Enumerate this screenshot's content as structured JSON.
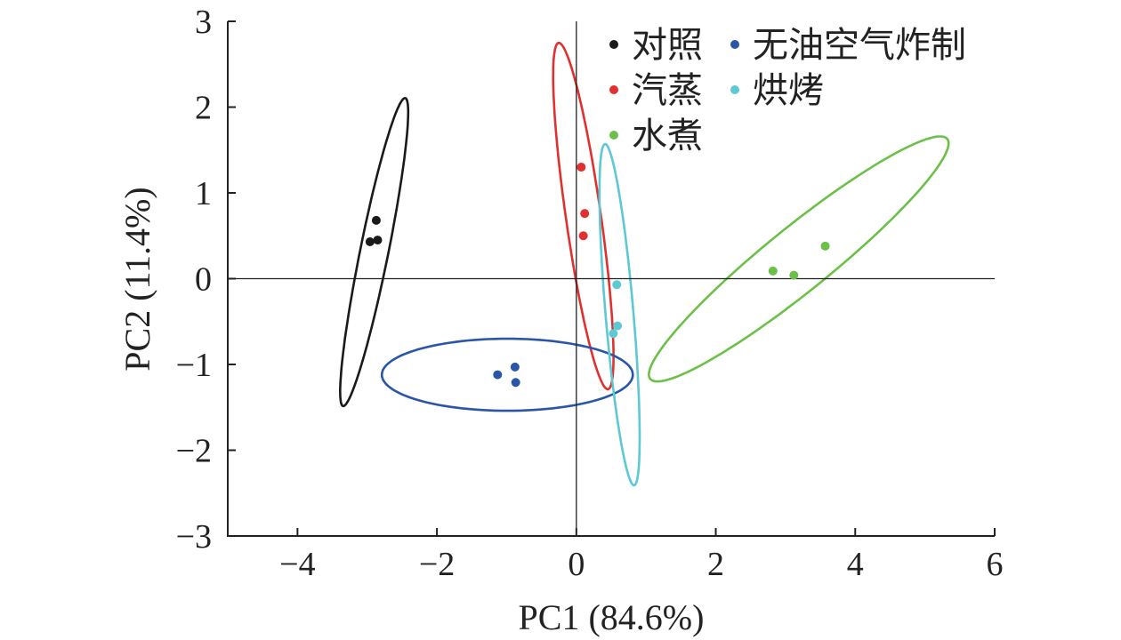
{
  "chart_data": {
    "type": "scatter",
    "xlabel": "PC1 (84.6%)",
    "ylabel": "PC2 (11.4%)",
    "xlim": [
      -5,
      6
    ],
    "ylim": [
      -3,
      3
    ],
    "x_ticks": [
      -4,
      -2,
      0,
      2,
      4,
      6
    ],
    "y_ticks": [
      -3,
      -2,
      -1,
      0,
      1,
      2,
      3
    ],
    "x_tick_labels": [
      "−4",
      "−2",
      "0",
      "2",
      "4",
      "6"
    ],
    "y_tick_labels": [
      "−3",
      "−2",
      "−1",
      "0",
      "1",
      "2",
      "3"
    ],
    "grid": false,
    "zero_lines": true,
    "legend_position": "top-right",
    "series": [
      {
        "name": "对照",
        "color": "#1a1a1a",
        "points": [
          [
            -2.87,
            0.68
          ],
          [
            -2.96,
            0.43
          ],
          [
            -2.85,
            0.45
          ]
        ],
        "ellipse": {
          "cx": -2.9,
          "cy": 0.31,
          "a": 1.85,
          "b": 0.2,
          "angle_deg": 76
        }
      },
      {
        "name": "汽蒸",
        "color": "#e03030",
        "points": [
          [
            0.07,
            1.3
          ],
          [
            0.12,
            0.76
          ],
          [
            0.1,
            0.5
          ]
        ],
        "ellipse": {
          "cx": 0.1,
          "cy": 0.73,
          "a": 2.05,
          "b": 0.25,
          "angle_deg": -80
        }
      },
      {
        "name": "水煮",
        "color": "#6cc04a",
        "points": [
          [
            2.82,
            0.09
          ],
          [
            3.12,
            0.04
          ],
          [
            3.57,
            0.38
          ]
        ],
        "ellipse": {
          "cx": 3.19,
          "cy": 0.23,
          "a": 2.55,
          "b": 0.4,
          "angle_deg": 33
        }
      },
      {
        "name": "无油空气炸制",
        "color": "#2a55a8",
        "points": [
          [
            -1.13,
            -1.12
          ],
          [
            -0.88,
            -1.03
          ],
          [
            -0.87,
            -1.21
          ]
        ],
        "ellipse": {
          "cx": -0.99,
          "cy": -1.12,
          "a": 1.8,
          "b": 0.42,
          "angle_deg": 0
        }
      },
      {
        "name": "烘烤",
        "color": "#5ec8d4",
        "points": [
          [
            0.58,
            -0.07
          ],
          [
            0.59,
            -0.55
          ],
          [
            0.53,
            -0.64
          ]
        ],
        "ellipse": {
          "cx": 0.62,
          "cy": -0.42,
          "a": 2.0,
          "b": 0.2,
          "angle_deg": -84
        }
      }
    ],
    "legend_columns": [
      [
        "对照",
        "汽蒸",
        "水煮"
      ],
      [
        "无油空气炸制",
        "烘烤"
      ]
    ]
  }
}
